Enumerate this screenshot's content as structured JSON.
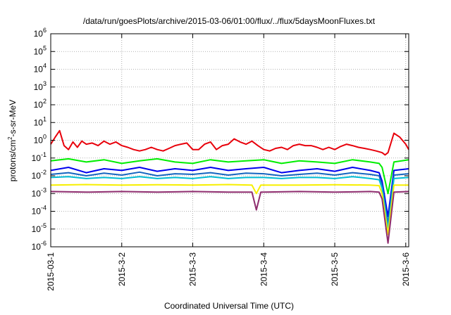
{
  "chart_data": {
    "type": "line",
    "title": "/data/run/goesPlots/archive/2015-03-06/01:00/flux/../flux/5daysMoonFluxes.txt",
    "xlabel": "Coordinated Universal Time (UTC)",
    "ylabel": "protons/cm²-s-sr-MeV",
    "ylabel_parts": {
      "pre": "protons/cm",
      "sup": "2",
      "post": "-s-sr-MeV"
    },
    "y_scale": "log",
    "ylim": [
      1e-06,
      1000000.0
    ],
    "y_ticks": [
      {
        "base": "10",
        "exp": "-6"
      },
      {
        "base": "10",
        "exp": "-5"
      },
      {
        "base": "10",
        "exp": "-4"
      },
      {
        "base": "10",
        "exp": "-3"
      },
      {
        "base": "10",
        "exp": "-2"
      },
      {
        "base": "10",
        "exp": "-1"
      },
      {
        "base": "10",
        "exp": "0"
      },
      {
        "base": "10",
        "exp": "1"
      },
      {
        "base": "10",
        "exp": "2"
      },
      {
        "base": "10",
        "exp": "3"
      },
      {
        "base": "10",
        "exp": "4"
      },
      {
        "base": "10",
        "exp": "5"
      },
      {
        "base": "10",
        "exp": "6"
      }
    ],
    "x_ticks": [
      "2015-03-1",
      "2015-3-2",
      "2015-3-3",
      "2015-3-4",
      "2015-3-5",
      "2015-3-6"
    ],
    "xlim": [
      "2015-03-01 00:00",
      "2015-03-06 01:00"
    ],
    "grid": true,
    "legend": "none",
    "series": [
      {
        "color": "#e8000b",
        "x": [
          "2015-03-01 00:00",
          "2015-03-01 01:30",
          "2015-03-01 03:00",
          "2015-03-01 04:30",
          "2015-03-01 06:00",
          "2015-03-01 07:30",
          "2015-03-01 09:00",
          "2015-03-01 10:30",
          "2015-03-01 12:00",
          "2015-03-01 14:00",
          "2015-03-01 16:00",
          "2015-03-01 18:00",
          "2015-03-01 20:00",
          "2015-03-01 22:00",
          "2015-03-02 00:00",
          "2015-03-02 02:00",
          "2015-03-02 04:00",
          "2015-03-02 06:00",
          "2015-03-02 08:00",
          "2015-03-02 10:00",
          "2015-03-02 12:00",
          "2015-03-02 14:00",
          "2015-03-02 16:00",
          "2015-03-02 18:00",
          "2015-03-02 20:00",
          "2015-03-02 22:00",
          "2015-03-03 00:00",
          "2015-03-03 02:00",
          "2015-03-03 04:00",
          "2015-03-03 06:00",
          "2015-03-03 08:00",
          "2015-03-03 10:00",
          "2015-03-03 12:00",
          "2015-03-03 14:00",
          "2015-03-03 16:00",
          "2015-03-03 18:00",
          "2015-03-03 20:00",
          "2015-03-03 22:00",
          "2015-03-04 00:00",
          "2015-03-04 02:00",
          "2015-03-04 04:00",
          "2015-03-04 06:00",
          "2015-03-04 08:00",
          "2015-03-04 10:00",
          "2015-03-04 12:00",
          "2015-03-04 14:00",
          "2015-03-04 16:00",
          "2015-03-04 18:00",
          "2015-03-04 20:00",
          "2015-03-04 22:00",
          "2015-03-05 00:00",
          "2015-03-05 02:00",
          "2015-03-05 04:00",
          "2015-03-05 06:00",
          "2015-03-05 08:00",
          "2015-03-05 10:00",
          "2015-03-05 12:00",
          "2015-03-05 14:00",
          "2015-03-05 16:00",
          "2015-03-05 17:00",
          "2015-03-05 18:00",
          "2015-03-05 20:00",
          "2015-03-05 22:00",
          "2015-03-06 00:00",
          "2015-03-06 01:00"
        ],
        "y": [
          0.6,
          1.5,
          3.5,
          0.5,
          0.3,
          0.8,
          0.4,
          0.9,
          0.6,
          0.7,
          0.5,
          0.9,
          0.6,
          0.8,
          0.5,
          0.4,
          0.3,
          0.25,
          0.3,
          0.4,
          0.3,
          0.25,
          0.35,
          0.5,
          0.6,
          0.7,
          0.3,
          0.3,
          0.6,
          0.8,
          0.3,
          0.5,
          0.6,
          1.2,
          0.8,
          0.6,
          0.9,
          0.5,
          0.3,
          0.25,
          0.35,
          0.4,
          0.3,
          0.5,
          0.6,
          0.5,
          0.5,
          0.4,
          0.3,
          0.4,
          0.3,
          0.45,
          0.6,
          0.5,
          0.4,
          0.35,
          0.3,
          0.25,
          0.2,
          0.15,
          0.2,
          2.5,
          1.5,
          0.6,
          0.3
        ]
      },
      {
        "color": "#00ee00",
        "x": [
          "2015-03-01 00:00",
          "2015-03-01 06:00",
          "2015-03-01 12:00",
          "2015-03-01 18:00",
          "2015-03-02 00:00",
          "2015-03-02 06:00",
          "2015-03-02 12:00",
          "2015-03-02 18:00",
          "2015-03-03 00:00",
          "2015-03-03 06:00",
          "2015-03-03 12:00",
          "2015-03-03 18:00",
          "2015-03-04 00:00",
          "2015-03-04 06:00",
          "2015-03-04 12:00",
          "2015-03-04 18:00",
          "2015-03-05 00:00",
          "2015-03-05 06:00",
          "2015-03-05 12:00",
          "2015-03-05 15:00",
          "2015-03-05 16:00",
          "2015-03-05 18:00",
          "2015-03-05 20:00",
          "2015-03-06 01:00"
        ],
        "y": [
          0.07,
          0.09,
          0.06,
          0.08,
          0.05,
          0.07,
          0.09,
          0.06,
          0.05,
          0.08,
          0.06,
          0.07,
          0.08,
          0.05,
          0.07,
          0.06,
          0.05,
          0.08,
          0.06,
          0.05,
          0.03,
          0.001,
          0.06,
          0.08
        ]
      },
      {
        "color": "#0000ee",
        "x": [
          "2015-03-01 00:00",
          "2015-03-01 06:00",
          "2015-03-01 12:00",
          "2015-03-01 18:00",
          "2015-03-02 00:00",
          "2015-03-02 06:00",
          "2015-03-02 12:00",
          "2015-03-02 18:00",
          "2015-03-03 00:00",
          "2015-03-03 06:00",
          "2015-03-03 12:00",
          "2015-03-03 18:00",
          "2015-03-04 00:00",
          "2015-03-04 06:00",
          "2015-03-04 12:00",
          "2015-03-04 18:00",
          "2015-03-05 00:00",
          "2015-03-05 06:00",
          "2015-03-05 12:00",
          "2015-03-05 15:00",
          "2015-03-05 16:00",
          "2015-03-05 18:00",
          "2015-03-05 20:00",
          "2015-03-06 01:00"
        ],
        "y": [
          0.02,
          0.03,
          0.015,
          0.025,
          0.02,
          0.03,
          0.018,
          0.025,
          0.02,
          0.03,
          0.02,
          0.025,
          0.03,
          0.015,
          0.02,
          0.025,
          0.018,
          0.03,
          0.02,
          0.015,
          0.005,
          5e-05,
          0.02,
          0.025
        ]
      },
      {
        "color": "#1565c0",
        "x": [
          "2015-03-01 00:00",
          "2015-03-01 06:00",
          "2015-03-01 12:00",
          "2015-03-01 18:00",
          "2015-03-02 00:00",
          "2015-03-02 06:00",
          "2015-03-02 12:00",
          "2015-03-02 18:00",
          "2015-03-03 00:00",
          "2015-03-03 06:00",
          "2015-03-03 12:00",
          "2015-03-03 18:00",
          "2015-03-04 00:00",
          "2015-03-04 06:00",
          "2015-03-04 12:00",
          "2015-03-04 18:00",
          "2015-03-05 00:00",
          "2015-03-05 06:00",
          "2015-03-05 12:00",
          "2015-03-05 15:00",
          "2015-03-05 16:00",
          "2015-03-05 18:00",
          "2015-03-05 20:00",
          "2015-03-06 01:00"
        ],
        "y": [
          0.012,
          0.015,
          0.01,
          0.014,
          0.011,
          0.016,
          0.01,
          0.013,
          0.012,
          0.015,
          0.011,
          0.014,
          0.013,
          0.01,
          0.012,
          0.014,
          0.011,
          0.015,
          0.012,
          0.01,
          0.003,
          2e-05,
          0.011,
          0.013
        ]
      },
      {
        "color": "#00bcd4",
        "x": [
          "2015-03-01 00:00",
          "2015-03-01 06:00",
          "2015-03-01 12:00",
          "2015-03-01 18:00",
          "2015-03-02 00:00",
          "2015-03-02 06:00",
          "2015-03-02 12:00",
          "2015-03-02 18:00",
          "2015-03-03 00:00",
          "2015-03-03 06:00",
          "2015-03-03 12:00",
          "2015-03-03 18:00",
          "2015-03-04 00:00",
          "2015-03-04 06:00",
          "2015-03-04 12:00",
          "2015-03-04 18:00",
          "2015-03-05 00:00",
          "2015-03-05 06:00",
          "2015-03-05 12:00",
          "2015-03-05 15:00",
          "2015-03-05 16:00",
          "2015-03-05 18:00",
          "2015-03-05 20:00",
          "2015-03-06 01:00"
        ],
        "y": [
          0.008,
          0.009,
          0.007,
          0.008,
          0.007,
          0.009,
          0.007,
          0.008,
          0.007,
          0.009,
          0.007,
          0.008,
          0.008,
          0.007,
          0.008,
          0.008,
          0.007,
          0.009,
          0.007,
          0.006,
          0.002,
          1e-05,
          0.007,
          0.008
        ]
      },
      {
        "color": "#f7ef00",
        "x": [
          "2015-03-01 00:00",
          "2015-03-01 12:00",
          "2015-03-02 00:00",
          "2015-03-02 12:00",
          "2015-03-03 00:00",
          "2015-03-03 12:00",
          "2015-03-03 20:00",
          "2015-03-03 21:30",
          "2015-03-03 23:00",
          "2015-03-04 12:00",
          "2015-03-05 00:00",
          "2015-03-05 12:00",
          "2015-03-05 15:00",
          "2015-03-05 16:00",
          "2015-03-05 18:00",
          "2015-03-05 20:00",
          "2015-03-06 01:00"
        ],
        "y": [
          0.003,
          0.0032,
          0.003,
          0.0031,
          0.003,
          0.0032,
          0.003,
          0.001,
          0.003,
          0.003,
          0.0031,
          0.003,
          0.0028,
          0.001,
          5e-06,
          0.003,
          0.003
        ]
      },
      {
        "color": "#8e2c6e",
        "x": [
          "2015-03-01 00:00",
          "2015-03-01 12:00",
          "2015-03-02 00:00",
          "2015-03-02 12:00",
          "2015-03-03 00:00",
          "2015-03-03 12:00",
          "2015-03-03 20:00",
          "2015-03-03 21:30",
          "2015-03-03 23:00",
          "2015-03-04 12:00",
          "2015-03-05 00:00",
          "2015-03-05 12:00",
          "2015-03-05 15:00",
          "2015-03-05 16:00",
          "2015-03-05 18:00",
          "2015-03-05 20:00",
          "2015-03-06 01:00"
        ],
        "y": [
          0.0013,
          0.0012,
          0.0013,
          0.0012,
          0.0013,
          0.0012,
          0.0012,
          0.00012,
          0.0012,
          0.0013,
          0.0012,
          0.0013,
          0.0012,
          0.0005,
          1.6e-06,
          0.0012,
          0.0013
        ]
      }
    ]
  }
}
